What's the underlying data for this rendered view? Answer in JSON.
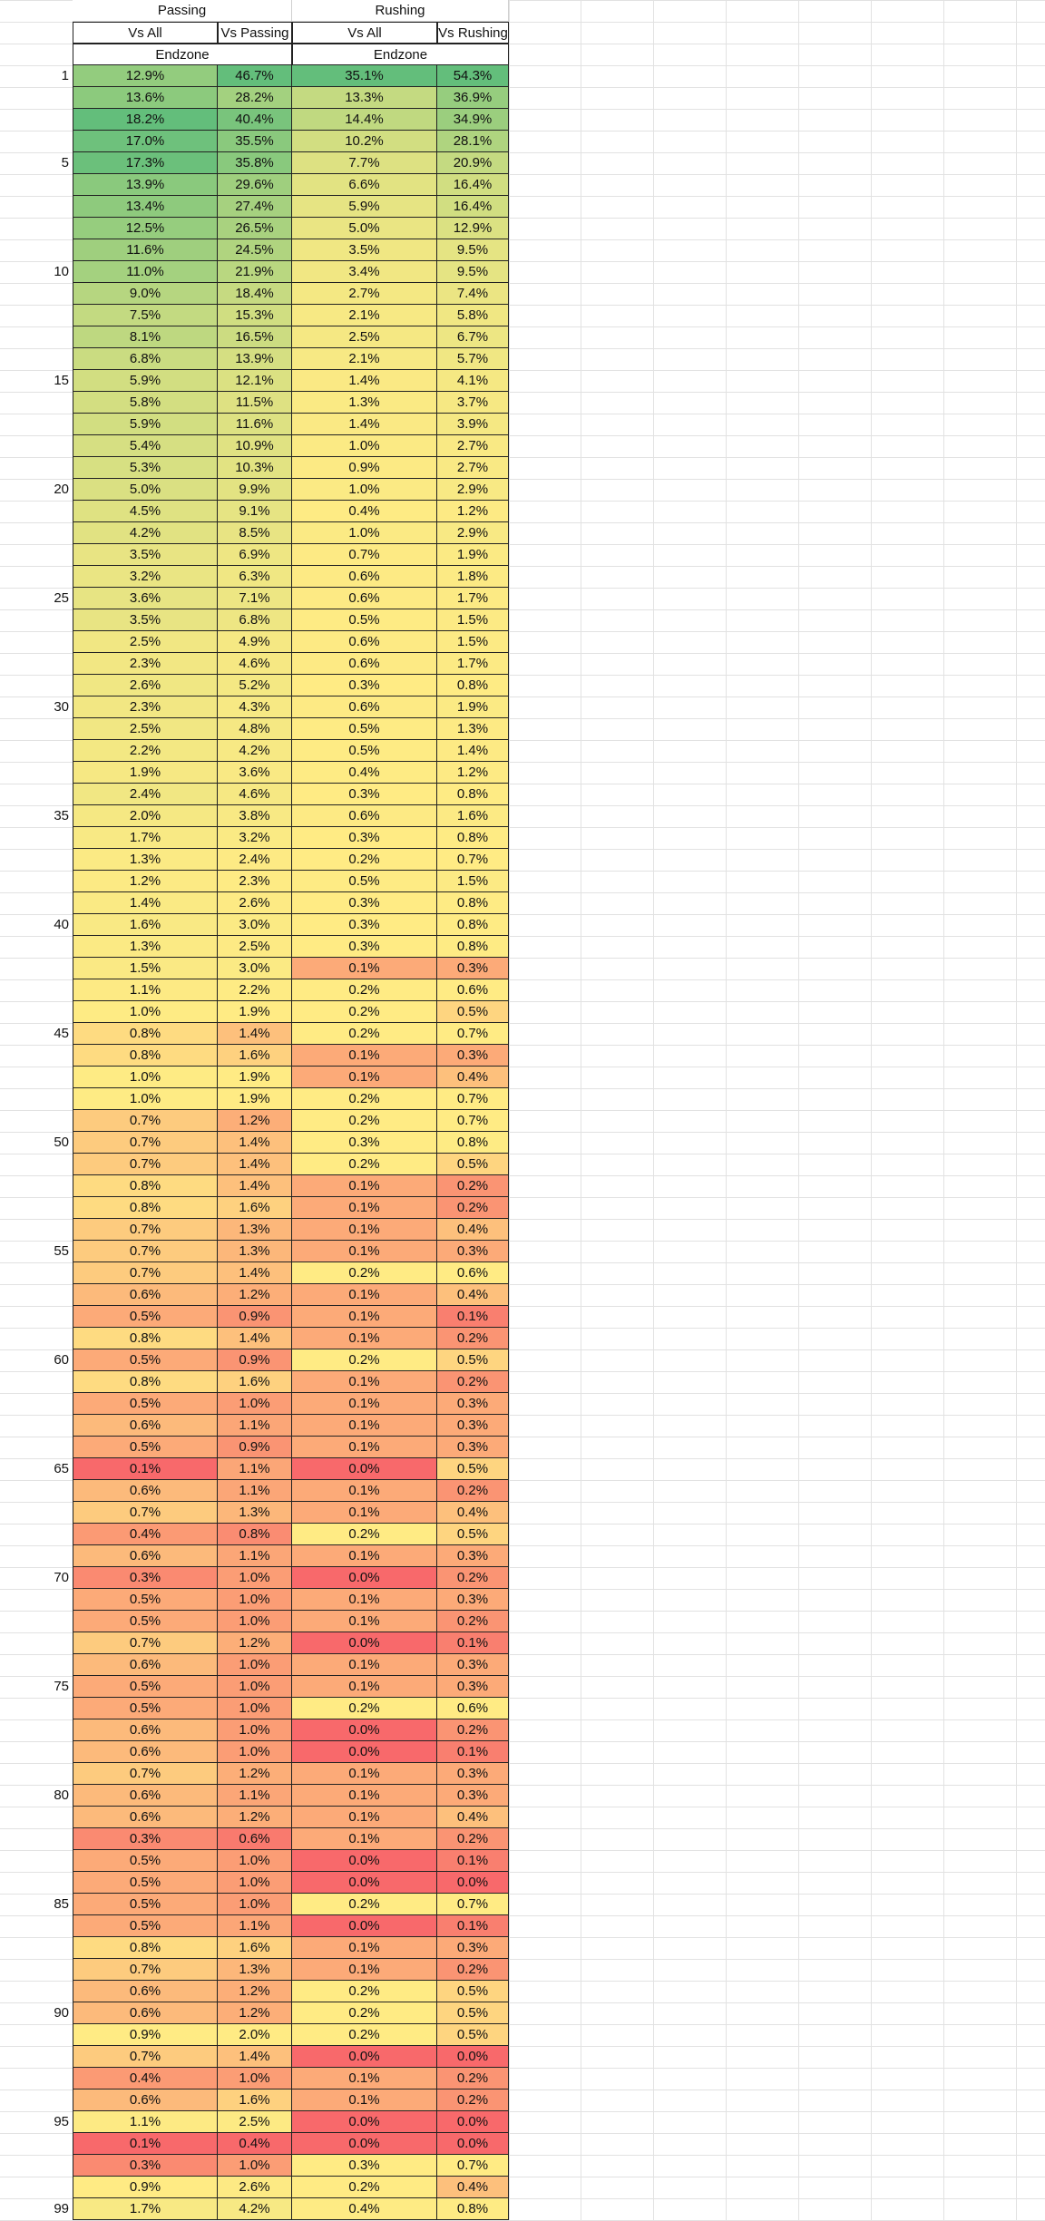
{
  "headers": {
    "group_passing": "Passing",
    "group_rushing": "Rushing",
    "passing_vs_all": "Vs All",
    "passing_vs_passing": "Vs Passing",
    "rushing_vs_all": "Vs All",
    "rushing_vs_rushing": "Vs Rushing",
    "endzone_passing": "Endzone",
    "endzone_rushing": "Endzone"
  },
  "row_number_labels": {
    "1": "1",
    "5": "5",
    "10": "10",
    "15": "15",
    "20": "20",
    "25": "25",
    "30": "30",
    "35": "35",
    "40": "40",
    "45": "45",
    "50": "50",
    "55": "55",
    "60": "60",
    "65": "65",
    "70": "70",
    "75": "75",
    "80": "80",
    "85": "85",
    "90": "90",
    "95": "95",
    "99": "99"
  },
  "color_scale": {
    "low": "#f8696b",
    "mid": "#ffeb84",
    "high": "#63be7b"
  },
  "rows": [
    [
      "12.9%",
      "46.7%",
      "35.1%",
      "54.3%"
    ],
    [
      "13.6%",
      "28.2%",
      "13.3%",
      "36.9%"
    ],
    [
      "18.2%",
      "40.4%",
      "14.4%",
      "34.9%"
    ],
    [
      "17.0%",
      "35.5%",
      "10.2%",
      "28.1%"
    ],
    [
      "17.3%",
      "35.8%",
      "7.7%",
      "20.9%"
    ],
    [
      "13.9%",
      "29.6%",
      "6.6%",
      "16.4%"
    ],
    [
      "13.4%",
      "27.4%",
      "5.9%",
      "16.4%"
    ],
    [
      "12.5%",
      "26.5%",
      "5.0%",
      "12.9%"
    ],
    [
      "11.6%",
      "24.5%",
      "3.5%",
      "9.5%"
    ],
    [
      "11.0%",
      "21.9%",
      "3.4%",
      "9.5%"
    ],
    [
      "9.0%",
      "18.4%",
      "2.7%",
      "7.4%"
    ],
    [
      "7.5%",
      "15.3%",
      "2.1%",
      "5.8%"
    ],
    [
      "8.1%",
      "16.5%",
      "2.5%",
      "6.7%"
    ],
    [
      "6.8%",
      "13.9%",
      "2.1%",
      "5.7%"
    ],
    [
      "5.9%",
      "12.1%",
      "1.4%",
      "4.1%"
    ],
    [
      "5.8%",
      "11.5%",
      "1.3%",
      "3.7%"
    ],
    [
      "5.9%",
      "11.6%",
      "1.4%",
      "3.9%"
    ],
    [
      "5.4%",
      "10.9%",
      "1.0%",
      "2.7%"
    ],
    [
      "5.3%",
      "10.3%",
      "0.9%",
      "2.7%"
    ],
    [
      "5.0%",
      "9.9%",
      "1.0%",
      "2.9%"
    ],
    [
      "4.5%",
      "9.1%",
      "0.4%",
      "1.2%"
    ],
    [
      "4.2%",
      "8.5%",
      "1.0%",
      "2.9%"
    ],
    [
      "3.5%",
      "6.9%",
      "0.7%",
      "1.9%"
    ],
    [
      "3.2%",
      "6.3%",
      "0.6%",
      "1.8%"
    ],
    [
      "3.6%",
      "7.1%",
      "0.6%",
      "1.7%"
    ],
    [
      "3.5%",
      "6.8%",
      "0.5%",
      "1.5%"
    ],
    [
      "2.5%",
      "4.9%",
      "0.6%",
      "1.5%"
    ],
    [
      "2.3%",
      "4.6%",
      "0.6%",
      "1.7%"
    ],
    [
      "2.6%",
      "5.2%",
      "0.3%",
      "0.8%"
    ],
    [
      "2.3%",
      "4.3%",
      "0.6%",
      "1.9%"
    ],
    [
      "2.5%",
      "4.8%",
      "0.5%",
      "1.3%"
    ],
    [
      "2.2%",
      "4.2%",
      "0.5%",
      "1.4%"
    ],
    [
      "1.9%",
      "3.6%",
      "0.4%",
      "1.2%"
    ],
    [
      "2.4%",
      "4.6%",
      "0.3%",
      "0.8%"
    ],
    [
      "2.0%",
      "3.8%",
      "0.6%",
      "1.6%"
    ],
    [
      "1.7%",
      "3.2%",
      "0.3%",
      "0.8%"
    ],
    [
      "1.3%",
      "2.4%",
      "0.2%",
      "0.7%"
    ],
    [
      "1.2%",
      "2.3%",
      "0.5%",
      "1.5%"
    ],
    [
      "1.4%",
      "2.6%",
      "0.3%",
      "0.8%"
    ],
    [
      "1.6%",
      "3.0%",
      "0.3%",
      "0.8%"
    ],
    [
      "1.3%",
      "2.5%",
      "0.3%",
      "0.8%"
    ],
    [
      "1.5%",
      "3.0%",
      "0.1%",
      "0.3%"
    ],
    [
      "1.1%",
      "2.2%",
      "0.2%",
      "0.6%"
    ],
    [
      "1.0%",
      "1.9%",
      "0.2%",
      "0.5%"
    ],
    [
      "0.8%",
      "1.4%",
      "0.2%",
      "0.7%"
    ],
    [
      "0.8%",
      "1.6%",
      "0.1%",
      "0.3%"
    ],
    [
      "1.0%",
      "1.9%",
      "0.1%",
      "0.4%"
    ],
    [
      "1.0%",
      "1.9%",
      "0.2%",
      "0.7%"
    ],
    [
      "0.7%",
      "1.2%",
      "0.2%",
      "0.7%"
    ],
    [
      "0.7%",
      "1.4%",
      "0.3%",
      "0.8%"
    ],
    [
      "0.7%",
      "1.4%",
      "0.2%",
      "0.5%"
    ],
    [
      "0.8%",
      "1.4%",
      "0.1%",
      "0.2%"
    ],
    [
      "0.8%",
      "1.6%",
      "0.1%",
      "0.2%"
    ],
    [
      "0.7%",
      "1.3%",
      "0.1%",
      "0.4%"
    ],
    [
      "0.7%",
      "1.3%",
      "0.1%",
      "0.3%"
    ],
    [
      "0.7%",
      "1.4%",
      "0.2%",
      "0.6%"
    ],
    [
      "0.6%",
      "1.2%",
      "0.1%",
      "0.4%"
    ],
    [
      "0.5%",
      "0.9%",
      "0.1%",
      "0.1%"
    ],
    [
      "0.8%",
      "1.4%",
      "0.1%",
      "0.2%"
    ],
    [
      "0.5%",
      "0.9%",
      "0.2%",
      "0.5%"
    ],
    [
      "0.8%",
      "1.6%",
      "0.1%",
      "0.2%"
    ],
    [
      "0.5%",
      "1.0%",
      "0.1%",
      "0.3%"
    ],
    [
      "0.6%",
      "1.1%",
      "0.1%",
      "0.3%"
    ],
    [
      "0.5%",
      "0.9%",
      "0.1%",
      "0.3%"
    ],
    [
      "0.1%",
      "1.1%",
      "0.0%",
      "0.5%"
    ],
    [
      "0.6%",
      "1.1%",
      "0.1%",
      "0.2%"
    ],
    [
      "0.7%",
      "1.3%",
      "0.1%",
      "0.4%"
    ],
    [
      "0.4%",
      "0.8%",
      "0.2%",
      "0.5%"
    ],
    [
      "0.6%",
      "1.1%",
      "0.1%",
      "0.3%"
    ],
    [
      "0.3%",
      "1.0%",
      "0.0%",
      "0.2%"
    ],
    [
      "0.5%",
      "1.0%",
      "0.1%",
      "0.3%"
    ],
    [
      "0.5%",
      "1.0%",
      "0.1%",
      "0.2%"
    ],
    [
      "0.7%",
      "1.2%",
      "0.0%",
      "0.1%"
    ],
    [
      "0.6%",
      "1.0%",
      "0.1%",
      "0.3%"
    ],
    [
      "0.5%",
      "1.0%",
      "0.1%",
      "0.3%"
    ],
    [
      "0.5%",
      "1.0%",
      "0.2%",
      "0.6%"
    ],
    [
      "0.6%",
      "1.0%",
      "0.0%",
      "0.2%"
    ],
    [
      "0.6%",
      "1.0%",
      "0.0%",
      "0.1%"
    ],
    [
      "0.7%",
      "1.2%",
      "0.1%",
      "0.3%"
    ],
    [
      "0.6%",
      "1.1%",
      "0.1%",
      "0.3%"
    ],
    [
      "0.6%",
      "1.2%",
      "0.1%",
      "0.4%"
    ],
    [
      "0.3%",
      "0.6%",
      "0.1%",
      "0.2%"
    ],
    [
      "0.5%",
      "1.0%",
      "0.0%",
      "0.1%"
    ],
    [
      "0.5%",
      "1.0%",
      "0.0%",
      "0.0%"
    ],
    [
      "0.5%",
      "1.0%",
      "0.2%",
      "0.7%"
    ],
    [
      "0.5%",
      "1.1%",
      "0.0%",
      "0.1%"
    ],
    [
      "0.8%",
      "1.6%",
      "0.1%",
      "0.3%"
    ],
    [
      "0.7%",
      "1.3%",
      "0.1%",
      "0.2%"
    ],
    [
      "0.6%",
      "1.2%",
      "0.2%",
      "0.5%"
    ],
    [
      "0.6%",
      "1.2%",
      "0.2%",
      "0.5%"
    ],
    [
      "0.9%",
      "2.0%",
      "0.2%",
      "0.5%"
    ],
    [
      "0.7%",
      "1.4%",
      "0.0%",
      "0.0%"
    ],
    [
      "0.4%",
      "1.0%",
      "0.1%",
      "0.2%"
    ],
    [
      "0.6%",
      "1.6%",
      "0.1%",
      "0.2%"
    ],
    [
      "1.1%",
      "2.5%",
      "0.0%",
      "0.0%"
    ],
    [
      "0.1%",
      "0.4%",
      "0.0%",
      "0.0%"
    ],
    [
      "0.3%",
      "1.0%",
      "0.3%",
      "0.7%"
    ],
    [
      "0.9%",
      "2.6%",
      "0.2%",
      "0.4%"
    ],
    [
      "1.7%",
      "4.2%",
      "0.4%",
      "0.8%"
    ]
  ]
}
